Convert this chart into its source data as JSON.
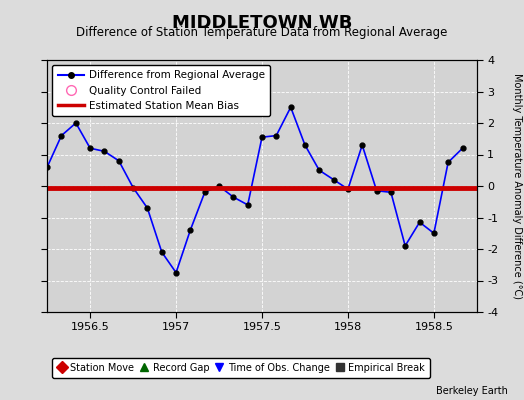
{
  "title": "MIDDLETOWN WB",
  "subtitle": "Difference of Station Temperature Data from Regional Average",
  "ylabel_right": "Monthly Temperature Anomaly Difference (°C)",
  "credit": "Berkeley Earth",
  "xlim": [
    1956.25,
    1958.75
  ],
  "ylim": [
    -4,
    4
  ],
  "yticks": [
    -4,
    -3,
    -2,
    -1,
    0,
    1,
    2,
    3,
    4
  ],
  "xticks": [
    1956.5,
    1957.0,
    1957.5,
    1958.0,
    1958.5
  ],
  "xtick_labels": [
    "1956.5",
    "1957",
    "1957.5",
    "1958",
    "1958.5"
  ],
  "bias_y": -0.05,
  "background_color": "#dcdcdc",
  "plot_bg_color": "#d3d3d3",
  "line_color": "#0000ff",
  "bias_color": "#cc0000",
  "x_data": [
    1956.25,
    1956.333,
    1956.417,
    1956.5,
    1956.583,
    1956.667,
    1956.75,
    1956.833,
    1956.917,
    1957.0,
    1957.083,
    1957.167,
    1957.25,
    1957.333,
    1957.417,
    1957.5,
    1957.583,
    1957.667,
    1957.75,
    1957.833,
    1957.917,
    1958.0,
    1958.083,
    1958.167,
    1958.25,
    1958.333,
    1958.417,
    1958.5,
    1958.583,
    1958.667
  ],
  "y_data": [
    0.6,
    1.6,
    2.0,
    1.2,
    1.1,
    0.8,
    -0.05,
    -0.7,
    -2.1,
    -2.75,
    -1.4,
    -0.2,
    0.0,
    -0.35,
    -0.6,
    1.55,
    1.6,
    2.5,
    1.3,
    0.5,
    0.2,
    -0.1,
    1.3,
    -0.15,
    -0.2,
    -1.9,
    -1.15,
    -1.5,
    0.75,
    1.2
  ],
  "legend_line_label": "Difference from Regional Average",
  "legend_qc_label": "Quality Control Failed",
  "legend_bias_label": "Estimated Station Mean Bias",
  "legend2_labels": [
    "Station Move",
    "Record Gap",
    "Time of Obs. Change",
    "Empirical Break"
  ],
  "legend2_colors": [
    "#cc0000",
    "#006600",
    "#0000ff",
    "#333333"
  ],
  "legend2_markers": [
    "D",
    "^",
    "v",
    "s"
  ],
  "title_fontsize": 13,
  "subtitle_fontsize": 8.5,
  "tick_fontsize": 8,
  "legend_fontsize": 7.5,
  "legend2_fontsize": 7,
  "ylabel_fontsize": 7
}
